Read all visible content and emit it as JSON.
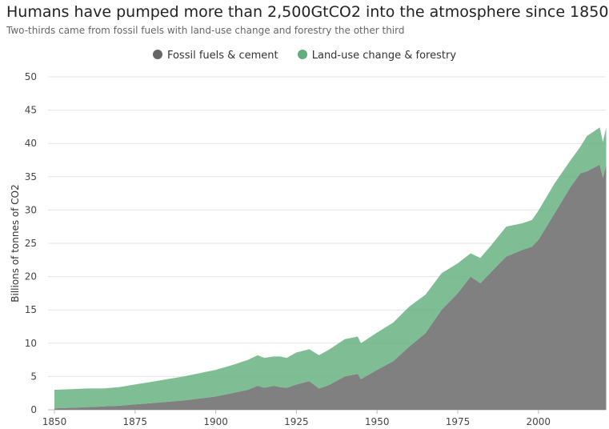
{
  "header": {
    "title": "Humans have pumped more than 2,500GtCO2 into the atmosphere since 1850",
    "subtitle": "Two-thirds came from fossil fuels with land-use change and forestry the other third"
  },
  "legend": [
    {
      "label": "Fossil fuels & cement",
      "color": "#808080"
    },
    {
      "label": "Land-use change & forestry",
      "color": "#5fae7b"
    }
  ],
  "chart_data": {
    "type": "area",
    "stacked": true,
    "title": "Humans have pumped more than 2,500GtCO2 into the atmosphere since 1850",
    "subtitle": "Two-thirds came from fossil fuels with land-use change and forestry the other third",
    "xlabel": "",
    "ylabel": "Billions of tonnes of CO2",
    "xlim": [
      1850,
      2021
    ],
    "ylim": [
      0,
      50
    ],
    "xticks": [
      1850,
      1875,
      1900,
      1925,
      1950,
      1975,
      2000
    ],
    "yticks": [
      0,
      5,
      10,
      15,
      20,
      25,
      30,
      35,
      40,
      45,
      50
    ],
    "grid": true,
    "legend_position": "top-center",
    "x": [
      1850,
      1855,
      1860,
      1865,
      1870,
      1875,
      1880,
      1885,
      1890,
      1895,
      1900,
      1905,
      1910,
      1913,
      1915,
      1918,
      1920,
      1922,
      1925,
      1929,
      1932,
      1935,
      1940,
      1944,
      1945,
      1950,
      1955,
      1960,
      1965,
      1970,
      1975,
      1979,
      1982,
      1985,
      1990,
      1995,
      1998,
      2000,
      2005,
      2010,
      2013,
      2015,
      2019,
      2020,
      2021
    ],
    "series": [
      {
        "name": "Fossil fuels & cement",
        "color": "#808080",
        "values": [
          0.2,
          0.3,
          0.4,
          0.5,
          0.6,
          0.8,
          1.0,
          1.2,
          1.4,
          1.7,
          2.0,
          2.5,
          3.0,
          3.6,
          3.3,
          3.6,
          3.4,
          3.3,
          3.8,
          4.3,
          3.2,
          3.7,
          5.0,
          5.4,
          4.6,
          6.0,
          7.3,
          9.5,
          11.5,
          15.0,
          17.5,
          20.0,
          19.0,
          20.5,
          23.0,
          24.0,
          24.5,
          25.5,
          29.5,
          33.5,
          35.5,
          35.8,
          36.8,
          34.8,
          36.8
        ]
      },
      {
        "name": "Land-use change & forestry",
        "color": "#5fae7b",
        "values": [
          2.8,
          2.8,
          2.8,
          2.7,
          2.8,
          3.0,
          3.2,
          3.4,
          3.6,
          3.8,
          4.0,
          4.2,
          4.5,
          4.6,
          4.5,
          4.4,
          4.6,
          4.5,
          4.8,
          4.8,
          5.0,
          5.3,
          5.6,
          5.6,
          5.4,
          5.6,
          5.8,
          6.0,
          5.8,
          5.5,
          4.5,
          3.5,
          3.8,
          4.0,
          4.5,
          4.0,
          4.0,
          4.4,
          4.5,
          4.0,
          4.0,
          5.3,
          5.6,
          5.4,
          5.6
        ]
      }
    ]
  }
}
